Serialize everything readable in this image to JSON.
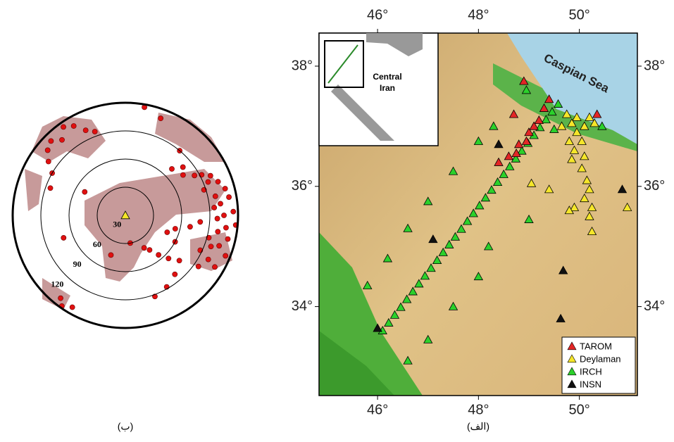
{
  "map": {
    "xlim": [
      44.84,
      51.15
    ],
    "ylim": [
      32.52,
      38.55
    ],
    "lon_ticks": [
      {
        "value": 46,
        "label": "46°"
      },
      {
        "value": 48,
        "label": "48°"
      },
      {
        "value": 50,
        "label": "50°"
      }
    ],
    "lat_ticks": [
      {
        "value": 38,
        "label": "38°"
      },
      {
        "value": 36,
        "label": "36°"
      },
      {
        "value": 34,
        "label": "34°"
      }
    ],
    "sea_label": "Caspian Sea",
    "inset_label": [
      "Central",
      "Iran"
    ],
    "caption": "(الف)",
    "stations": [
      {
        "name": "TAROM",
        "color": "#e32626",
        "points": [
          [
            48.9,
            37.75
          ],
          [
            48.7,
            37.2
          ],
          [
            49.4,
            37.45
          ],
          [
            50.35,
            37.2
          ],
          [
            48.4,
            36.4
          ],
          [
            48.6,
            36.5
          ],
          [
            48.8,
            36.7
          ],
          [
            49.0,
            36.9
          ],
          [
            49.2,
            37.1
          ],
          [
            49.3,
            37.3
          ],
          [
            48.95,
            36.75
          ],
          [
            49.1,
            37.0
          ],
          [
            48.75,
            36.55
          ]
        ]
      },
      {
        "name": "Deylaman",
        "color": "#f5e62a",
        "points": [
          [
            49.75,
            37.2
          ],
          [
            49.95,
            37.15
          ],
          [
            50.2,
            37.15
          ],
          [
            49.85,
            37.05
          ],
          [
            50.1,
            37.0
          ],
          [
            50.3,
            37.05
          ],
          [
            49.95,
            36.9
          ],
          [
            49.8,
            36.75
          ],
          [
            50.05,
            36.75
          ],
          [
            49.9,
            36.6
          ],
          [
            50.1,
            36.5
          ],
          [
            49.85,
            36.45
          ],
          [
            50.05,
            36.3
          ],
          [
            50.15,
            36.1
          ],
          [
            50.2,
            35.95
          ],
          [
            50.1,
            35.8
          ],
          [
            50.25,
            35.65
          ],
          [
            49.9,
            35.65
          ],
          [
            49.8,
            35.6
          ],
          [
            50.2,
            35.5
          ],
          [
            50.25,
            35.25
          ],
          [
            50.95,
            35.65
          ],
          [
            49.05,
            36.05
          ],
          [
            49.4,
            35.95
          ],
          [
            49.65,
            37.0
          ]
        ]
      },
      {
        "name": "IRCH",
        "color": "#2bd12b",
        "points": [
          [
            46.1,
            33.6
          ],
          [
            46.22,
            33.73
          ],
          [
            46.34,
            33.86
          ],
          [
            46.46,
            33.99
          ],
          [
            46.58,
            34.12
          ],
          [
            46.7,
            34.25
          ],
          [
            46.82,
            34.38
          ],
          [
            46.94,
            34.51
          ],
          [
            47.06,
            34.64
          ],
          [
            47.18,
            34.77
          ],
          [
            47.3,
            34.9
          ],
          [
            47.42,
            35.03
          ],
          [
            47.54,
            35.16
          ],
          [
            47.66,
            35.29
          ],
          [
            47.78,
            35.42
          ],
          [
            47.9,
            35.55
          ],
          [
            48.02,
            35.68
          ],
          [
            48.14,
            35.81
          ],
          [
            48.26,
            35.94
          ],
          [
            48.38,
            36.07
          ],
          [
            48.5,
            36.2
          ],
          [
            48.62,
            36.33
          ],
          [
            48.74,
            36.46
          ],
          [
            48.86,
            36.59
          ],
          [
            48.98,
            36.72
          ],
          [
            49.1,
            36.85
          ],
          [
            49.22,
            36.98
          ],
          [
            49.34,
            37.11
          ],
          [
            49.46,
            37.24
          ],
          [
            49.58,
            37.37
          ],
          [
            46.2,
            34.8
          ],
          [
            45.8,
            34.35
          ],
          [
            46.6,
            35.3
          ],
          [
            47.0,
            35.75
          ],
          [
            47.5,
            36.25
          ],
          [
            48.0,
            36.75
          ],
          [
            48.3,
            37.0
          ],
          [
            48.2,
            35.0
          ],
          [
            48.0,
            34.5
          ],
          [
            47.5,
            34.0
          ],
          [
            47.0,
            33.45
          ],
          [
            46.6,
            33.1
          ],
          [
            48.95,
            37.6
          ],
          [
            50.45,
            37.0
          ],
          [
            49.0,
            35.45
          ],
          [
            49.5,
            36.95
          ]
        ]
      },
      {
        "name": "INSN",
        "color": "#111111",
        "points": [
          [
            48.4,
            36.7
          ],
          [
            50.85,
            35.95
          ],
          [
            47.1,
            35.12
          ],
          [
            49.68,
            34.6
          ],
          [
            49.63,
            33.8
          ],
          [
            46.0,
            33.64
          ]
        ]
      }
    ]
  },
  "polar": {
    "rlim": [
      0,
      120
    ],
    "rings": [
      30,
      60,
      90,
      120
    ],
    "caption": "(ب)",
    "events": [
      [
        60,
        85
      ],
      [
        62,
        92
      ],
      [
        65,
        100
      ],
      [
        68,
        95
      ],
      [
        70,
        105
      ],
      [
        72,
        88
      ],
      [
        75,
        110
      ],
      [
        78,
        98
      ],
      [
        80,
        112
      ],
      [
        83,
        102
      ],
      [
        85,
        95
      ],
      [
        88,
        115
      ],
      [
        90,
        105
      ],
      [
        92,
        98
      ],
      [
        95,
        118
      ],
      [
        97,
        108
      ],
      [
        100,
        100
      ],
      [
        103,
        112
      ],
      [
        105,
        92
      ],
      [
        108,
        105
      ],
      [
        110,
        97
      ],
      [
        112,
        115
      ],
      [
        115,
        88
      ],
      [
        118,
        100
      ],
      [
        120,
        110
      ],
      [
        125,
        95
      ],
      [
        130,
        75
      ],
      [
        135,
        65
      ],
      [
        140,
        55
      ],
      [
        145,
        45
      ],
      [
        150,
        40
      ],
      [
        118,
        60
      ],
      [
        100,
        70
      ],
      [
        95,
        80
      ],
      [
        140,
        82
      ],
      [
        170,
        30
      ],
      [
        200,
        45
      ],
      [
        210,
        113
      ],
      [
        215,
        118
      ],
      [
        218,
        112
      ],
      [
        305,
        100
      ],
      [
        310,
        108
      ],
      [
        315,
        112
      ],
      [
        320,
        105
      ],
      [
        325,
        115
      ],
      [
        330,
        110
      ],
      [
        335,
        100
      ],
      [
        340,
        95
      ],
      [
        300,
        90
      ],
      [
        290,
        85
      ],
      [
        55,
        75
      ],
      [
        50,
        80
      ],
      [
        45,
        70
      ],
      [
        40,
        90
      ],
      [
        20,
        110
      ],
      [
        10,
        117
      ],
      [
        150,
        88
      ],
      [
        160,
        92
      ],
      [
        105,
        55
      ],
      [
        112,
        48
      ],
      [
        300,
        50
      ],
      [
        250,
        70
      ]
    ]
  }
}
